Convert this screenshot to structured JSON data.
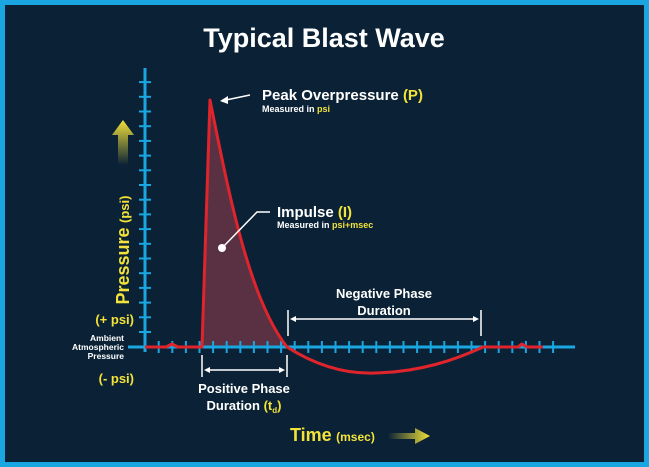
{
  "title": "Typical Blast Wave",
  "peak": {
    "label": "Peak Overpressure",
    "symbol": "(P)",
    "sub_prefix": "Measured in",
    "sub_unit": "psi"
  },
  "impulse": {
    "label": "Impulse",
    "symbol": "(I)",
    "sub_prefix": "Measured in",
    "sub_unit": "psi+msec"
  },
  "y_axis": {
    "label": "Pressure",
    "unit": "(psi)",
    "positive": "(+ psi)",
    "negative": "(- psi)"
  },
  "ambient": {
    "line1": "Ambient",
    "line2": "Atmospheric",
    "line3": "Pressure"
  },
  "positive_phase": {
    "line1": "Positive Phase",
    "line2": "Duration",
    "symbol_open": "(t",
    "symbol_sub": "d",
    "symbol_close": ")"
  },
  "negative_phase": {
    "line1": "Negative Phase",
    "line2": "Duration"
  },
  "x_axis": {
    "label": "Time",
    "unit": "(msec)"
  },
  "colors": {
    "background": "#0b2236",
    "border": "#1aa6e0",
    "axis": "#1aa6e0",
    "curve": "#e0242c",
    "fill": "#5a3142",
    "accent": "#f2e23a",
    "text": "#ffffff"
  }
}
